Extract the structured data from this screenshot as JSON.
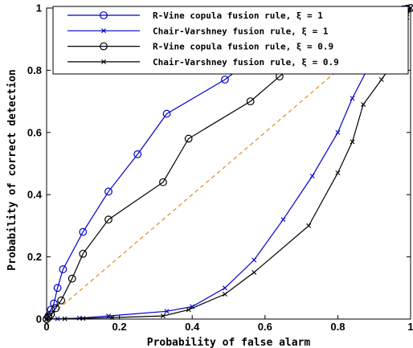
{
  "chart_data": {
    "type": "line",
    "xlabel": "Probability of false alarm",
    "ylabel": "Probability of correct detection",
    "xlim": [
      0,
      1
    ],
    "ylim": [
      0,
      1
    ],
    "x_ticks": [
      "0",
      "0.2",
      "0.4",
      "0.6",
      "0.8",
      "1"
    ],
    "y_ticks": [
      "0",
      "0.2",
      "0.4",
      "0.6",
      "0.8",
      "1"
    ],
    "grid": false,
    "legend_position": "top-right",
    "series": [
      {
        "name": "R-Vine copula fusion rule, ξ = 1",
        "color": "#0000cc",
        "marker": "circle",
        "line_style": "solid",
        "x": [
          0,
          0.005,
          0.012,
          0.02,
          0.03,
          0.045,
          0.1,
          0.17,
          0.25,
          0.33,
          0.49,
          0.57,
          0.65,
          0.79,
          0.86,
          0.9,
          0.95,
          0.97,
          0.98,
          0.99,
          1.0
        ],
        "y": [
          0,
          0.01,
          0.03,
          0.05,
          0.1,
          0.16,
          0.28,
          0.41,
          0.53,
          0.66,
          0.77,
          0.84,
          0.9,
          0.95,
          0.975,
          0.985,
          0.99,
          0.993,
          0.996,
          0.998,
          1.0
        ]
      },
      {
        "name": "Chair-Varshney fusion rule, ξ = 1",
        "color": "#0000cc",
        "marker": "x",
        "line_style": "solid",
        "x": [
          0,
          0.03,
          0.09,
          0.17,
          0.33,
          0.4,
          0.49,
          0.57,
          0.65,
          0.73,
          0.8,
          0.84,
          0.88,
          0.94,
          0.96,
          0.975,
          0.985,
          0.99,
          1.0
        ],
        "y": [
          0,
          0.001,
          0.003,
          0.01,
          0.025,
          0.04,
          0.1,
          0.19,
          0.32,
          0.46,
          0.6,
          0.71,
          0.8,
          0.86,
          0.91,
          0.95,
          0.98,
          0.99,
          1.0
        ]
      },
      {
        "name": "R-Vine copula fusion rule, ξ = 0.9",
        "color": "#000000",
        "marker": "circle",
        "line_style": "solid",
        "x": [
          0,
          0.005,
          0.012,
          0.025,
          0.04,
          0.07,
          0.1,
          0.17,
          0.32,
          0.39,
          0.56,
          0.64,
          0.72,
          0.85,
          0.92,
          0.96,
          0.98,
          0.99,
          1.0
        ],
        "y": [
          0,
          0.005,
          0.015,
          0.035,
          0.06,
          0.13,
          0.21,
          0.32,
          0.44,
          0.58,
          0.7,
          0.78,
          0.86,
          0.92,
          0.96,
          0.98,
          0.99,
          0.997,
          1.0
        ]
      },
      {
        "name": "Chair-Varshney fusion rule, ξ = 0.9",
        "color": "#000000",
        "marker": "x",
        "line_style": "solid",
        "x": [
          0,
          0.05,
          0.1,
          0.18,
          0.32,
          0.39,
          0.49,
          0.57,
          0.72,
          0.8,
          0.84,
          0.87,
          0.92,
          0.95,
          0.97,
          0.98,
          0.99,
          1.0
        ],
        "y": [
          0,
          0.001,
          0.002,
          0.005,
          0.01,
          0.03,
          0.08,
          0.15,
          0.3,
          0.47,
          0.57,
          0.69,
          0.77,
          0.82,
          0.88,
          0.93,
          0.97,
          1.0
        ]
      }
    ],
    "reference_line": {
      "x": [
        0,
        1
      ],
      "y": [
        0,
        1
      ],
      "color": "#e08a1e",
      "line_style": "dashed"
    }
  }
}
